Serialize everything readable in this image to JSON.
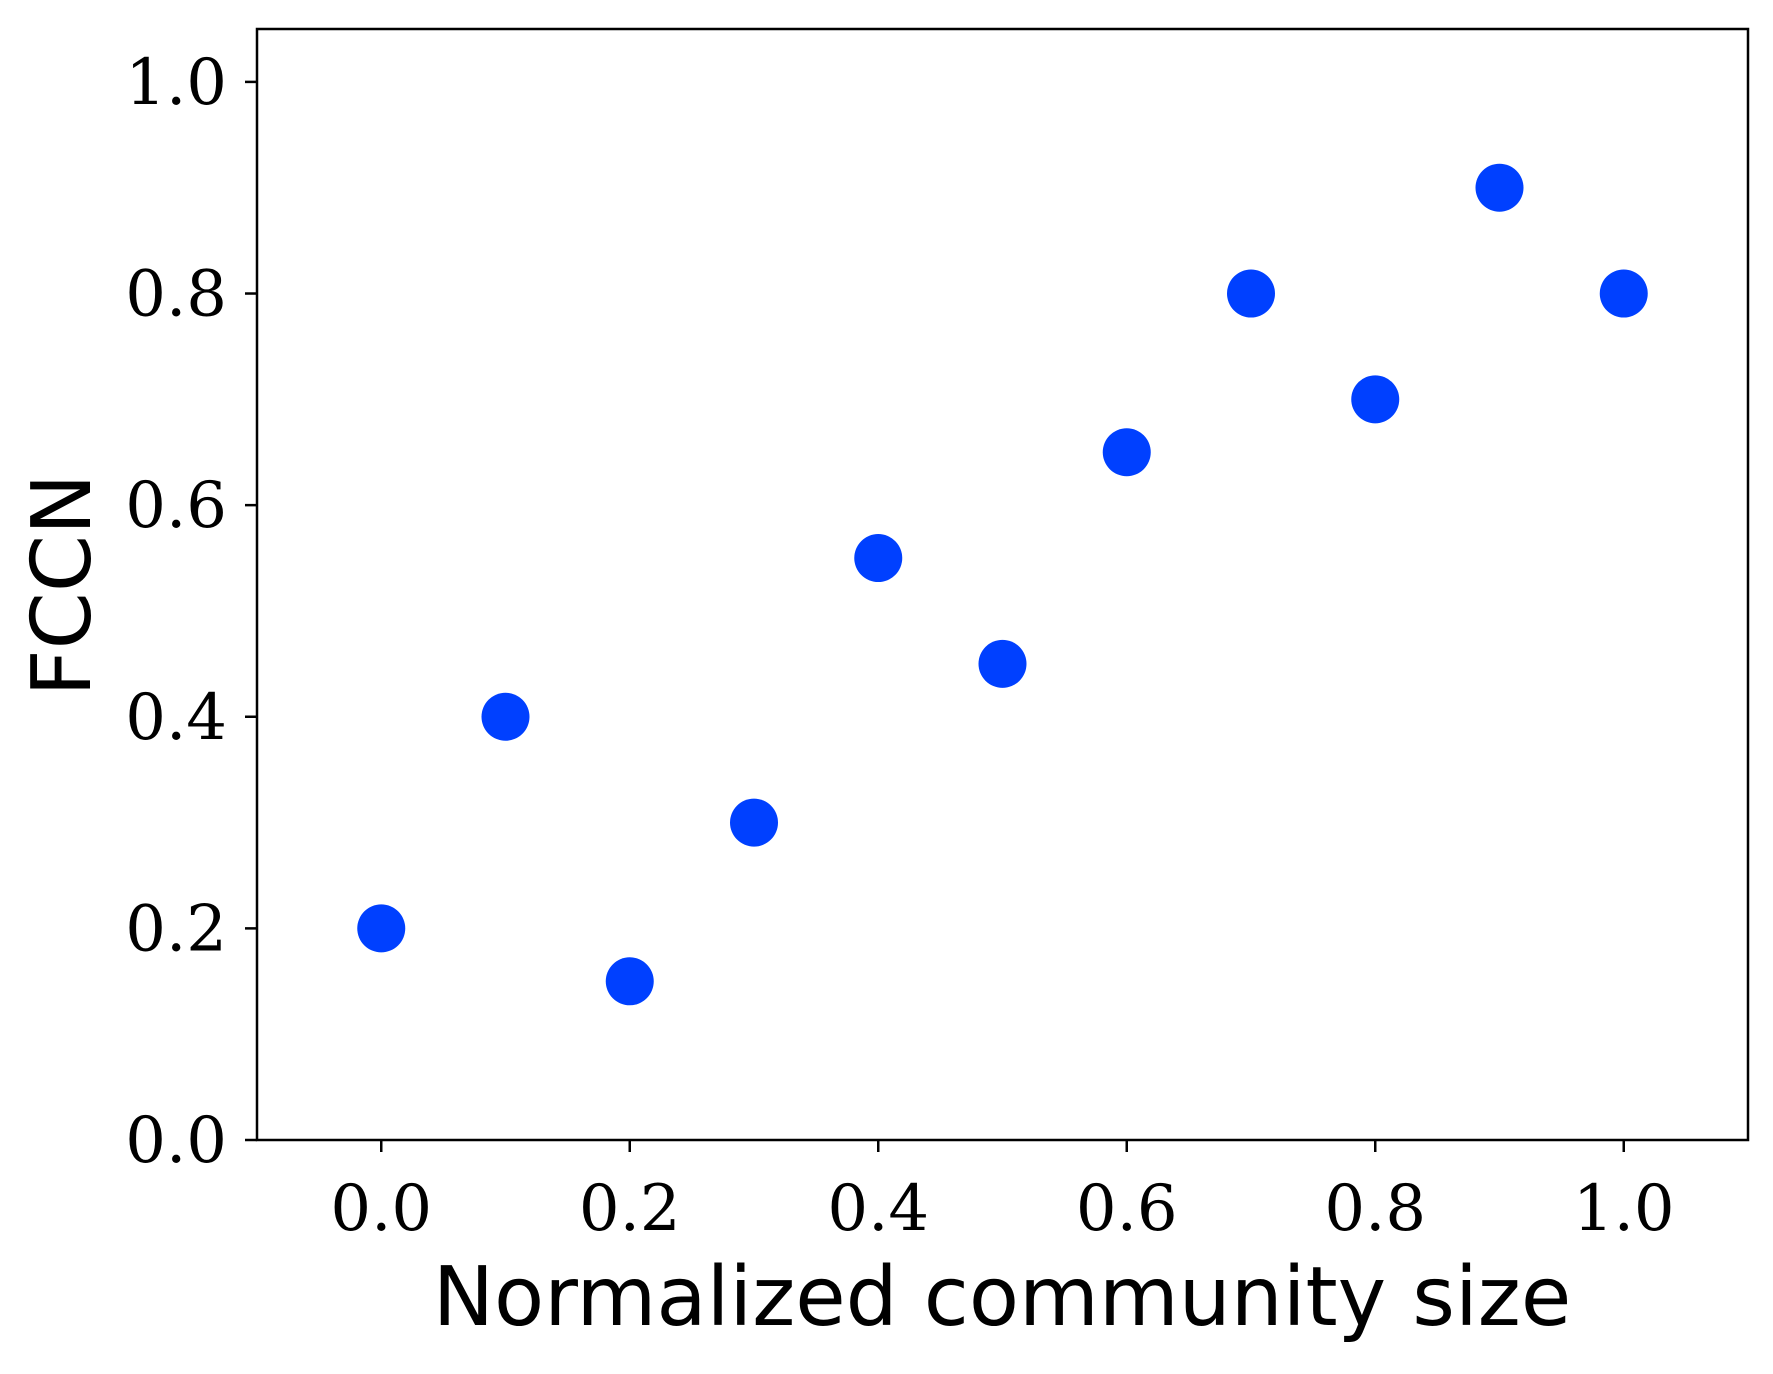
{
  "chart_data": {
    "type": "scatter",
    "title": "",
    "xlabel": "Normalized community size",
    "ylabel": "FCCN",
    "xlim": [
      -0.1,
      1.1
    ],
    "ylim": [
      0.0,
      1.05
    ],
    "xticks": [
      0.0,
      0.2,
      0.4,
      0.6,
      0.8,
      1.0
    ],
    "yticks": [
      0.0,
      0.2,
      0.4,
      0.6,
      0.8,
      1.0
    ],
    "xtick_labels": [
      "0.0",
      "0.2",
      "0.4",
      "0.6",
      "0.8",
      "1.0"
    ],
    "ytick_labels": [
      "0.0",
      "0.2",
      "0.4",
      "0.6",
      "0.8",
      "1.0"
    ],
    "grid": false,
    "marker_color": "#0040ff",
    "series": [
      {
        "x": [
          0.0,
          0.1,
          0.2,
          0.3,
          0.4,
          0.5,
          0.6,
          0.7,
          0.8,
          0.9,
          1.0
        ],
        "y": [
          0.2,
          0.4,
          0.15,
          0.3,
          0.55,
          0.45,
          0.65,
          0.8,
          0.7,
          0.9,
          0.8
        ]
      }
    ]
  }
}
